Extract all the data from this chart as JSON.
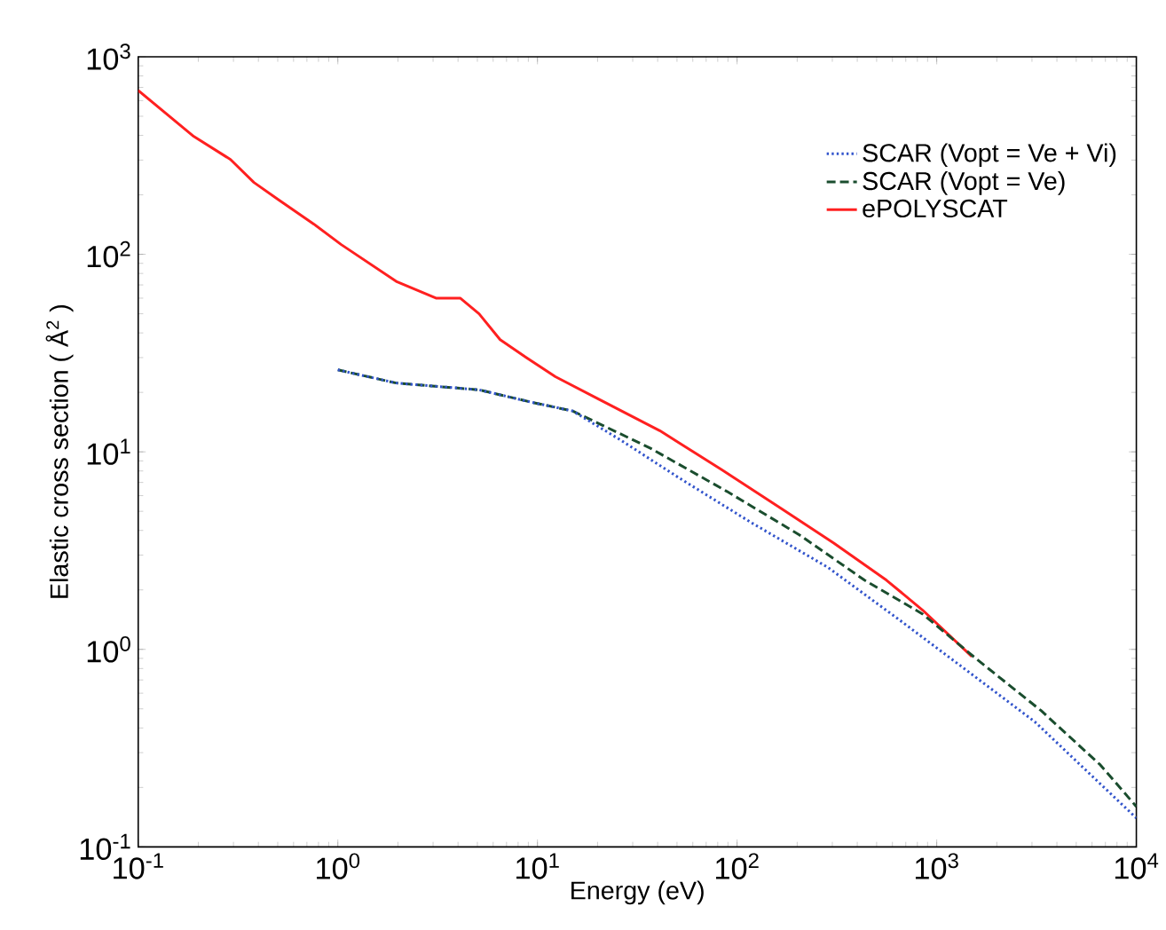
{
  "chart_data": {
    "type": "line",
    "xlabel": "Energy (eV)",
    "ylabel": "Elastic cross section ( Å$^{2}$ )",
    "log": "xy",
    "legend": "top right",
    "grid": false,
    "xlim": [
      0.1,
      10000
    ],
    "ylim": [
      0.1,
      1000
    ],
    "xticks": [
      {
        "value": 0.1,
        "label": "10$^{-1}$"
      },
      {
        "value": 1,
        "label": "10$^{0}$"
      },
      {
        "value": 10,
        "label": "10$^{1}$"
      },
      {
        "value": 100,
        "label": "10$^{2}$"
      },
      {
        "value": 1000,
        "label": "10$^{3}$"
      },
      {
        "value": 10000,
        "label": "10$^{4}$"
      }
    ],
    "yticks": [
      {
        "value": 0.1,
        "label": "10$^{-1}$"
      },
      {
        "value": 1,
        "label": "10$^{0}$"
      },
      {
        "value": 10,
        "label": "10$^{1}$"
      },
      {
        "value": 100,
        "label": "10$^{2}$"
      },
      {
        "value": 1000,
        "label": "10$^{3}$"
      }
    ],
    "series": [
      {
        "name": "SCAR   (Vopt = Ve + Vi)",
        "color": "#3355cc",
        "line_style": "dotted",
        "x": [
          1,
          1.96,
          5.1,
          9.4,
          15,
          26,
          51,
          117,
          285,
          650,
          1350,
          3100,
          10000
        ],
        "values": [
          26,
          22.3,
          20.6,
          17.8,
          16.1,
          11.5,
          7.4,
          4.4,
          2.6,
          1.41,
          0.81,
          0.43,
          0.14
        ]
      },
      {
        "name": "SCAR   (Vopt = Ve)",
        "color": "#1a4d2e",
        "line_style": "dashed",
        "x": [
          1,
          1.96,
          5.1,
          9.4,
          15,
          37,
          89,
          205,
          435,
          850,
          1590,
          3330,
          6600,
          10000
        ],
        "values": [
          26,
          22.3,
          20.6,
          17.8,
          16.1,
          10.4,
          6.3,
          3.8,
          2.24,
          1.51,
          0.89,
          0.49,
          0.26,
          0.16
        ]
      },
      {
        "name": "ePOLYSCAT",
        "color": "#ff2020",
        "line_style": "solid",
        "x": [
          0.1,
          0.19,
          0.29,
          0.38,
          0.5,
          0.76,
          1.04,
          1.96,
          3.1,
          4.1,
          5.1,
          6.5,
          8.8,
          12.3,
          20,
          41,
          84,
          165,
          305,
          560,
          850,
          1500
        ],
        "values": [
          676,
          395,
          302,
          231,
          190,
          142,
          112,
          73,
          60,
          60,
          50,
          37,
          30,
          24,
          18.6,
          12.8,
          8.1,
          5.2,
          3.45,
          2.24,
          1.58,
          0.92
        ]
      }
    ]
  }
}
